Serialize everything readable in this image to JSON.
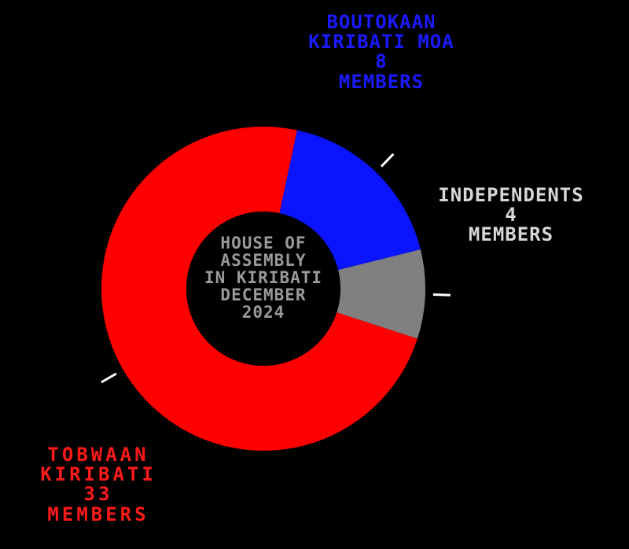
{
  "chart_data": {
    "type": "pie",
    "donut": true,
    "title_lines": [
      "HOUSE OF",
      "ASSEMBLY",
      "IN KIRIBATI",
      "DECEMBER",
      "2024"
    ],
    "slices": [
      {
        "party": "BOUTOKAAN KIRIBATI MOA",
        "members": 8,
        "count_label": "8",
        "unit": "MEMBERS",
        "label_lines": [
          "BOUTOKAAN",
          "KIRIBATI MOA"
        ],
        "color": "#0a14ff"
      },
      {
        "party": "INDEPENDENTS",
        "members": 4,
        "count_label": "4",
        "unit": "MEMBERS",
        "label_lines": [
          "INDEPENDENTS"
        ],
        "color": "#808080"
      },
      {
        "party": "TOBWAAN KIRIBATI",
        "members": 33,
        "count_label": "33",
        "unit": "MEMBERS",
        "label_lines": [
          "TOBWAAN",
          "KIRIBATI"
        ],
        "color": "#ff0000"
      }
    ],
    "background": "#000000"
  }
}
